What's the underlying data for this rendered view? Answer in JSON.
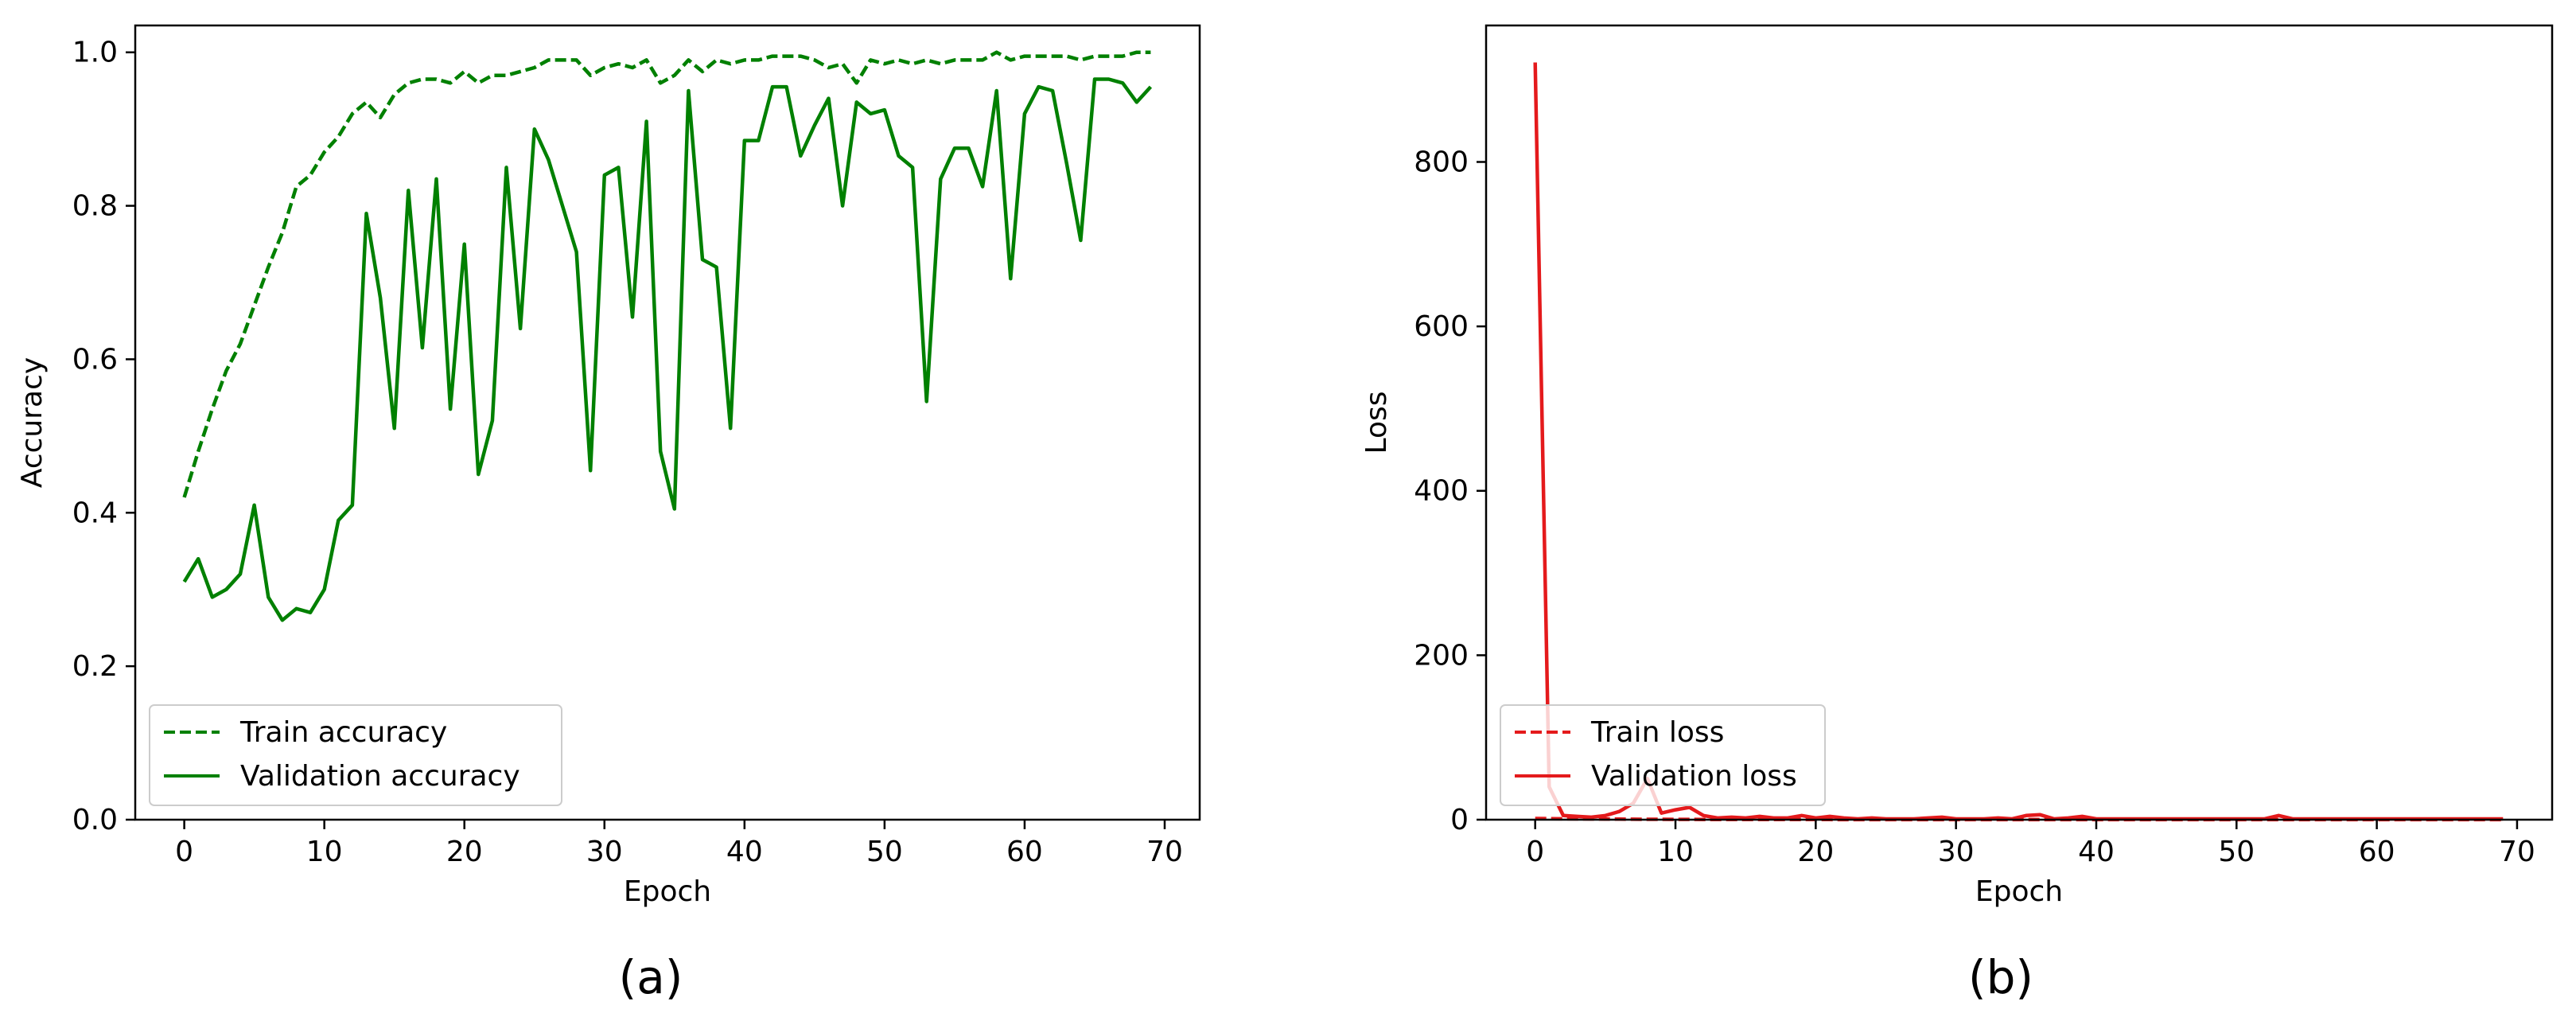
{
  "chart_data": [
    {
      "type": "line",
      "caption": "(a)",
      "xlabel": "Epoch",
      "ylabel": "Accuracy",
      "xlim": [
        -3.5,
        72.5
      ],
      "ylim": [
        0.0,
        1.035
      ],
      "xticks": [
        0,
        10,
        20,
        30,
        40,
        50,
        60,
        70
      ],
      "yticks": [
        0.0,
        0.2,
        0.4,
        0.6,
        0.8,
        1.0
      ],
      "ytick_labels": [
        "0.0",
        "0.2",
        "0.4",
        "0.6",
        "0.8",
        "1.0"
      ],
      "grid": false,
      "legend_position": "lower-left",
      "series": [
        {
          "name": "Train accuracy",
          "color": "#008000",
          "style": "dashed",
          "x": [
            0,
            1,
            2,
            3,
            4,
            5,
            6,
            7,
            8,
            9,
            10,
            11,
            12,
            13,
            14,
            15,
            16,
            17,
            18,
            19,
            20,
            21,
            22,
            23,
            24,
            25,
            26,
            27,
            28,
            29,
            30,
            31,
            32,
            33,
            34,
            35,
            36,
            37,
            38,
            39,
            40,
            41,
            42,
            43,
            44,
            45,
            46,
            47,
            48,
            49,
            50,
            51,
            52,
            53,
            54,
            55,
            56,
            57,
            58,
            59,
            60,
            61,
            62,
            63,
            64,
            65,
            66,
            67,
            68,
            69
          ],
          "values": [
            0.42,
            0.48,
            0.535,
            0.585,
            0.62,
            0.67,
            0.72,
            0.765,
            0.825,
            0.84,
            0.87,
            0.89,
            0.92,
            0.935,
            0.915,
            0.945,
            0.96,
            0.965,
            0.965,
            0.96,
            0.975,
            0.96,
            0.97,
            0.97,
            0.975,
            0.98,
            0.99,
            0.99,
            0.99,
            0.97,
            0.98,
            0.985,
            0.98,
            0.99,
            0.96,
            0.97,
            0.99,
            0.975,
            0.99,
            0.985,
            0.99,
            0.99,
            0.995,
            0.995,
            0.995,
            0.99,
            0.98,
            0.985,
            0.96,
            0.99,
            0.985,
            0.99,
            0.985,
            0.99,
            0.985,
            0.99,
            0.99,
            0.99,
            1.0,
            0.99,
            0.995,
            0.995,
            0.995,
            0.995,
            0.99,
            0.995,
            0.995,
            0.995,
            1.0,
            1.0
          ]
        },
        {
          "name": "Validation accuracy",
          "color": "#008000",
          "style": "solid",
          "x": [
            0,
            1,
            2,
            3,
            4,
            5,
            6,
            7,
            8,
            9,
            10,
            11,
            12,
            13,
            14,
            15,
            16,
            17,
            18,
            19,
            20,
            21,
            22,
            23,
            24,
            25,
            26,
            27,
            28,
            29,
            30,
            31,
            32,
            33,
            34,
            35,
            36,
            37,
            38,
            39,
            40,
            41,
            42,
            43,
            44,
            45,
            46,
            47,
            48,
            49,
            50,
            51,
            52,
            53,
            54,
            55,
            56,
            57,
            58,
            59,
            60,
            61,
            62,
            63,
            64,
            65,
            66,
            67,
            68,
            69
          ],
          "values": [
            0.31,
            0.34,
            0.29,
            0.3,
            0.32,
            0.41,
            0.29,
            0.26,
            0.275,
            0.27,
            0.3,
            0.39,
            0.41,
            0.79,
            0.68,
            0.51,
            0.82,
            0.615,
            0.835,
            0.535,
            0.75,
            0.45,
            0.52,
            0.85,
            0.64,
            0.9,
            0.86,
            0.8,
            0.74,
            0.455,
            0.84,
            0.85,
            0.655,
            0.91,
            0.48,
            0.405,
            0.95,
            0.73,
            0.72,
            0.51,
            0.885,
            0.885,
            0.955,
            0.955,
            0.865,
            0.905,
            0.94,
            0.8,
            0.935,
            0.92,
            0.925,
            0.865,
            0.85,
            0.545,
            0.835,
            0.875,
            0.875,
            0.825,
            0.95,
            0.705,
            0.92,
            0.955,
            0.95,
            0.855,
            0.755,
            0.965,
            0.965,
            0.96,
            0.935,
            0.955
          ]
        }
      ]
    },
    {
      "type": "line",
      "caption": "(b)",
      "xlabel": "Epoch",
      "ylabel": "Loss",
      "xlim": [
        -3.5,
        72.5
      ],
      "ylim": [
        0,
        966
      ],
      "xticks": [
        0,
        10,
        20,
        30,
        40,
        50,
        60,
        70
      ],
      "yticks": [
        0,
        200,
        400,
        600,
        800
      ],
      "ytick_labels": [
        "0",
        "200",
        "400",
        "600",
        "800"
      ],
      "grid": false,
      "legend_position": "lower-left",
      "series": [
        {
          "name": "Train loss",
          "color": "#e41a1c",
          "style": "dashed",
          "x": [
            0,
            1,
            2,
            3,
            4,
            5,
            6,
            7,
            8,
            9,
            10,
            11,
            12,
            13,
            14,
            15,
            16,
            17,
            18,
            19,
            20,
            21,
            22,
            23,
            24,
            25,
            26,
            27,
            28,
            29,
            30,
            31,
            32,
            33,
            34,
            35,
            36,
            37,
            38,
            39,
            40,
            41,
            42,
            43,
            44,
            45,
            46,
            47,
            48,
            49,
            50,
            51,
            52,
            53,
            54,
            55,
            56,
            57,
            58,
            59,
            60,
            61,
            62,
            63,
            64,
            65,
            66,
            67,
            68,
            69
          ],
          "values": [
            1.5,
            1.3,
            1.1,
            1.0,
            0.9,
            0.8,
            0.7,
            0.6,
            0.5,
            0.45,
            0.4,
            0.35,
            0.3,
            0.25,
            0.25,
            0.2,
            0.2,
            0.2,
            0.15,
            0.15,
            0.15,
            0.15,
            0.1,
            0.1,
            0.1,
            0.1,
            0.1,
            0.1,
            0.1,
            0.1,
            0.1,
            0.1,
            0.1,
            0.1,
            0.1,
            0.1,
            0.1,
            0.1,
            0.1,
            0.1,
            0.1,
            0.1,
            0.1,
            0.1,
            0.1,
            0.1,
            0.1,
            0.1,
            0.1,
            0.1,
            0.1,
            0.1,
            0.1,
            0.1,
            0.1,
            0.1,
            0.1,
            0.1,
            0.1,
            0.1,
            0.1,
            0.1,
            0.1,
            0.1,
            0.1,
            0.1,
            0.1,
            0.1,
            0.1,
            0.1
          ]
        },
        {
          "name": "Validation loss",
          "color": "#e41a1c",
          "style": "solid",
          "x": [
            0,
            1,
            2,
            3,
            4,
            5,
            6,
            7,
            8,
            9,
            10,
            11,
            12,
            13,
            14,
            15,
            16,
            17,
            18,
            19,
            20,
            21,
            22,
            23,
            24,
            25,
            26,
            27,
            28,
            29,
            30,
            31,
            32,
            33,
            34,
            35,
            36,
            37,
            38,
            39,
            40,
            41,
            42,
            43,
            44,
            45,
            46,
            47,
            48,
            49,
            50,
            51,
            52,
            53,
            54,
            55,
            56,
            57,
            58,
            59,
            60,
            61,
            62,
            63,
            64,
            65,
            66,
            67,
            68,
            69
          ],
          "values": [
            921,
            40,
            5,
            4,
            3,
            5,
            10,
            20,
            50,
            8,
            12,
            15,
            5,
            2,
            3,
            2,
            4,
            2,
            2,
            5,
            2,
            4,
            2,
            1,
            2,
            1,
            1,
            1,
            2,
            3,
            1,
            1,
            1,
            2,
            1,
            5,
            6,
            1,
            2,
            4,
            1,
            1,
            1,
            1,
            1,
            1,
            1,
            1,
            1,
            1,
            1,
            1,
            1,
            5,
            1,
            1,
            1,
            1,
            1,
            1,
            1,
            1,
            1,
            1,
            1,
            1,
            1,
            1,
            1,
            1
          ]
        }
      ]
    }
  ]
}
